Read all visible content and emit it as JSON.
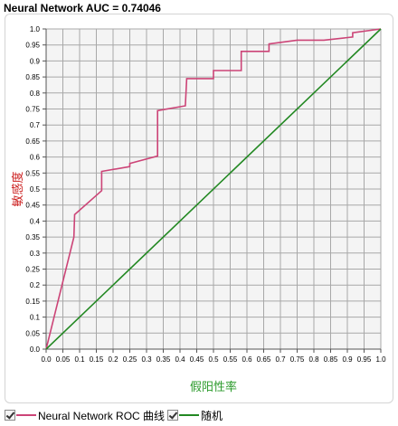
{
  "chart_data": {
    "type": "line",
    "title": "Neural Network AUC = 0.74046",
    "xlabel": "假阳性率",
    "ylabel": "敏感度",
    "xlim": [
      0,
      1
    ],
    "ylim": [
      0,
      1
    ],
    "grid": true,
    "legend": "bottom-left",
    "xticks": [
      "0.0",
      "0.05",
      "0.1",
      "0.15",
      "0.2",
      "0.25",
      "0.3",
      "0.35",
      "0.4",
      "0.45",
      "0.5",
      "0.55",
      "0.6",
      "0.65",
      "0.7",
      "0.75",
      "0.8",
      "0.85",
      "0.9",
      "0.95",
      "1.0"
    ],
    "yticks": [
      "0.0",
      "0.05",
      "0.1",
      "0.15",
      "0.2",
      "0.25",
      "0.3",
      "0.35",
      "0.4",
      "0.45",
      "0.5",
      "0.55",
      "0.6",
      "0.65",
      "0.7",
      "0.75",
      "0.8",
      "0.85",
      "0.9",
      "0.95",
      "1.0"
    ],
    "series": [
      {
        "name": "Neural Network ROC 曲线",
        "color": "#cc4477",
        "x": [
          0,
          0.083,
          0.085,
          0.166,
          0.166,
          0.25,
          0.25,
          0.333,
          0.333,
          0.416,
          0.42,
          0.5,
          0.5,
          0.583,
          0.583,
          0.666,
          0.666,
          0.75,
          0.83,
          0.916,
          0.916,
          1.0
        ],
        "y": [
          0,
          0.35,
          0.42,
          0.495,
          0.555,
          0.57,
          0.58,
          0.603,
          0.745,
          0.76,
          0.845,
          0.845,
          0.87,
          0.87,
          0.93,
          0.93,
          0.953,
          0.965,
          0.965,
          0.975,
          0.988,
          1.0
        ]
      },
      {
        "name": "随机",
        "color": "#228822",
        "x": [
          0,
          1
        ],
        "y": [
          0,
          1
        ]
      }
    ]
  }
}
